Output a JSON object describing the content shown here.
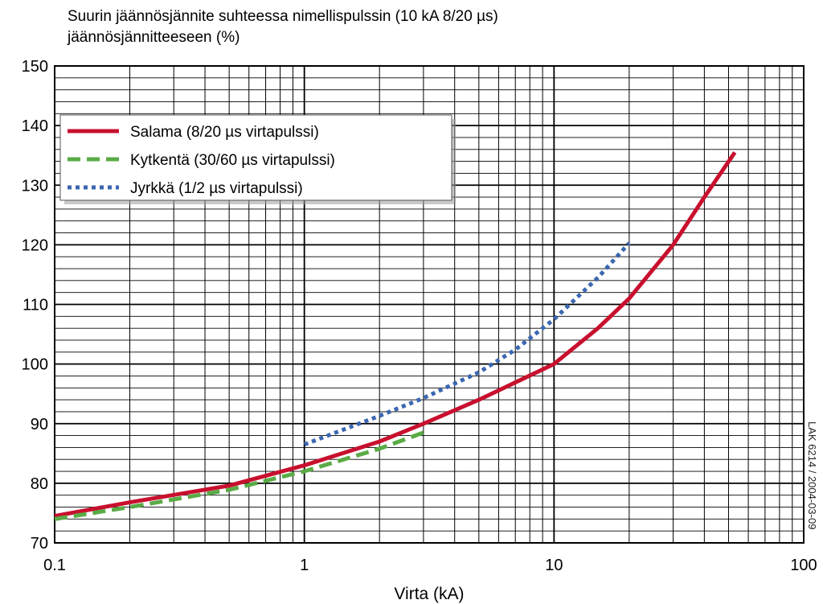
{
  "chart_data": {
    "type": "line",
    "title_line1": "Suurin jäännösjännite suhteessa nimellispulssin (10 kA 8/20 µs)",
    "title_line2": "jäännösjännitteeseen (%)",
    "xlabel": "Virta (kA)",
    "ylabel": "",
    "x_scale": "log",
    "xlim": [
      0.1,
      100
    ],
    "ylim": [
      70,
      150
    ],
    "x_ticks": [
      0.1,
      1,
      10,
      100
    ],
    "x_tick_labels": [
      "0.1",
      "1",
      "10",
      "100"
    ],
    "y_ticks": [
      70,
      80,
      90,
      100,
      110,
      120,
      130,
      140,
      150
    ],
    "y_tick_labels": [
      "70",
      "80",
      "90",
      "100",
      "110",
      "120",
      "130",
      "140",
      "150"
    ],
    "grid": true,
    "legend_position": "top-left",
    "side_note": "LAK 6214 / 2004-03-09",
    "series": [
      {
        "name": "Salama (8/20 µs virtapulssi)",
        "color": "#c8102e",
        "style": "solid",
        "x": [
          0.1,
          0.2,
          0.5,
          1,
          2,
          3,
          5,
          10,
          15,
          20,
          30,
          40,
          53
        ],
        "y": [
          74.5,
          76.8,
          79.6,
          83.0,
          87.0,
          90.0,
          94.0,
          100.0,
          106.0,
          111.0,
          120.0,
          128.0,
          135.5
        ]
      },
      {
        "name": "Kytkentä (30/60 µs virtapulssi)",
        "color": "#5aab46",
        "style": "dashed",
        "x": [
          0.1,
          0.2,
          0.5,
          1,
          2,
          3
        ],
        "y": [
          74.0,
          76.0,
          78.9,
          82.0,
          85.8,
          88.5
        ]
      },
      {
        "name": "Jyrkkä (1/2 µs virtapulssi)",
        "color": "#3a67b0",
        "style": "dotted",
        "x": [
          1,
          2,
          3,
          5,
          7,
          10,
          15,
          20
        ],
        "y": [
          86.5,
          91.3,
          94.3,
          98.6,
          102.4,
          107.5,
          114.5,
          120.3
        ]
      }
    ]
  }
}
